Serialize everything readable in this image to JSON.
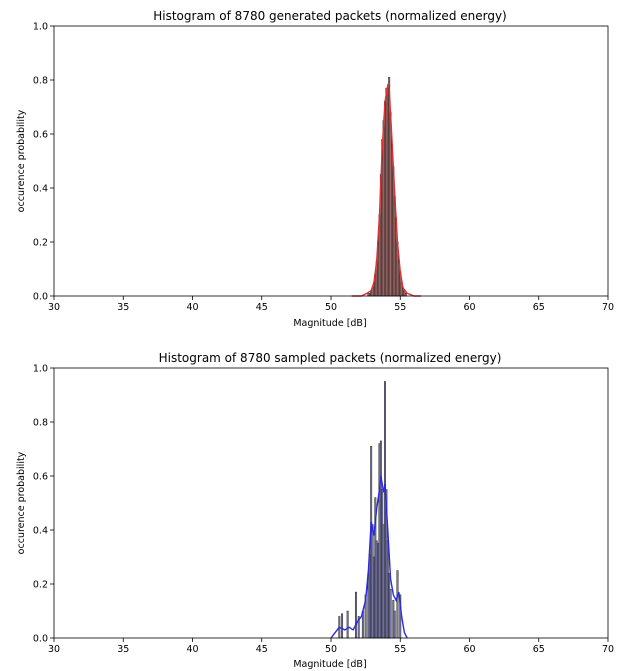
{
  "chart_data": [
    {
      "type": "bar",
      "title": "Histogram of 8780 generated packets (normalized energy)",
      "xlabel": "Magnitude [dB]",
      "ylabel": "occurence probability",
      "xlim": [
        30,
        70
      ],
      "ylim": [
        0,
        1.0
      ],
      "xticks": [
        "30",
        "35",
        "40",
        "45",
        "50",
        "55",
        "60",
        "65",
        "70"
      ],
      "yticks": [
        "0.0",
        "0.2",
        "0.4",
        "0.6",
        "0.8",
        "1.0"
      ],
      "bar_color": "#b07070",
      "curve_color": "#e03030",
      "grid": false,
      "bins": [
        {
          "x": 52.7,
          "v": 0.01
        },
        {
          "x": 52.8,
          "v": 0.01
        },
        {
          "x": 52.9,
          "v": 0.02
        },
        {
          "x": 53.0,
          "v": 0.03
        },
        {
          "x": 53.1,
          "v": 0.05
        },
        {
          "x": 53.2,
          "v": 0.08
        },
        {
          "x": 53.3,
          "v": 0.13
        },
        {
          "x": 53.4,
          "v": 0.2
        },
        {
          "x": 53.5,
          "v": 0.3
        },
        {
          "x": 53.6,
          "v": 0.45
        },
        {
          "x": 53.7,
          "v": 0.58
        },
        {
          "x": 53.8,
          "v": 0.65
        },
        {
          "x": 53.9,
          "v": 0.72
        },
        {
          "x": 54.0,
          "v": 0.77
        },
        {
          "x": 54.1,
          "v": 0.77
        },
        {
          "x": 54.2,
          "v": 0.81
        },
        {
          "x": 54.3,
          "v": 0.68
        },
        {
          "x": 54.4,
          "v": 0.56
        },
        {
          "x": 54.5,
          "v": 0.48
        },
        {
          "x": 54.6,
          "v": 0.37
        },
        {
          "x": 54.7,
          "v": 0.29
        },
        {
          "x": 54.8,
          "v": 0.2
        },
        {
          "x": 54.9,
          "v": 0.13
        },
        {
          "x": 55.0,
          "v": 0.09
        },
        {
          "x": 55.1,
          "v": 0.05
        },
        {
          "x": 55.2,
          "v": 0.03
        },
        {
          "x": 55.3,
          "v": 0.02
        },
        {
          "x": 55.4,
          "v": 0.01
        }
      ],
      "curve": [
        {
          "x": 51.5,
          "y": 0.0
        },
        {
          "x": 52.2,
          "y": 0.0
        },
        {
          "x": 52.6,
          "y": 0.01
        },
        {
          "x": 52.9,
          "y": 0.02
        },
        {
          "x": 53.1,
          "y": 0.05
        },
        {
          "x": 53.3,
          "y": 0.13
        },
        {
          "x": 53.5,
          "y": 0.3
        },
        {
          "x": 53.7,
          "y": 0.55
        },
        {
          "x": 53.9,
          "y": 0.72
        },
        {
          "x": 54.1,
          "y": 0.78
        },
        {
          "x": 54.2,
          "y": 0.77
        },
        {
          "x": 54.4,
          "y": 0.58
        },
        {
          "x": 54.6,
          "y": 0.38
        },
        {
          "x": 54.8,
          "y": 0.2
        },
        {
          "x": 55.0,
          "y": 0.09
        },
        {
          "x": 55.2,
          "y": 0.03
        },
        {
          "x": 55.5,
          "y": 0.01
        },
        {
          "x": 56.0,
          "y": 0.0
        },
        {
          "x": 56.5,
          "y": 0.0
        }
      ]
    },
    {
      "type": "bar",
      "title": "Histogram of 8780 sampled packets (normalized energy)",
      "xlabel": "Magnitude [dB]",
      "ylabel": "occurence probability",
      "xlim": [
        30,
        70
      ],
      "ylim": [
        0,
        1.0
      ],
      "xticks": [
        "30",
        "35",
        "40",
        "45",
        "50",
        "55",
        "60",
        "65",
        "70"
      ],
      "yticks": [
        "0.0",
        "0.2",
        "0.4",
        "0.6",
        "0.8",
        "1.0"
      ],
      "bar_color": "#8080b8",
      "curve_color": "#2a2ae0",
      "grid": false,
      "bins": [
        {
          "x": 50.6,
          "v": 0.08
        },
        {
          "x": 50.8,
          "v": 0.09
        },
        {
          "x": 51.2,
          "v": 0.1
        },
        {
          "x": 51.8,
          "v": 0.17
        },
        {
          "x": 52.0,
          "v": 0.08
        },
        {
          "x": 52.3,
          "v": 0.1
        },
        {
          "x": 52.5,
          "v": 0.16
        },
        {
          "x": 52.7,
          "v": 0.24
        },
        {
          "x": 52.8,
          "v": 0.31
        },
        {
          "x": 52.9,
          "v": 0.71
        },
        {
          "x": 53.0,
          "v": 0.42
        },
        {
          "x": 53.1,
          "v": 0.3
        },
        {
          "x": 53.2,
          "v": 0.52
        },
        {
          "x": 53.3,
          "v": 0.36
        },
        {
          "x": 53.4,
          "v": 0.35
        },
        {
          "x": 53.5,
          "v": 0.72
        },
        {
          "x": 53.6,
          "v": 0.73
        },
        {
          "x": 53.7,
          "v": 0.55
        },
        {
          "x": 53.8,
          "v": 0.42
        },
        {
          "x": 53.9,
          "v": 0.95
        },
        {
          "x": 54.0,
          "v": 0.55
        },
        {
          "x": 54.1,
          "v": 0.36
        },
        {
          "x": 54.2,
          "v": 0.24
        },
        {
          "x": 54.3,
          "v": 0.18
        },
        {
          "x": 54.5,
          "v": 0.14
        },
        {
          "x": 54.6,
          "v": 0.1
        },
        {
          "x": 54.8,
          "v": 0.25
        },
        {
          "x": 55.0,
          "v": 0.16
        }
      ],
      "curve": [
        {
          "x": 50.0,
          "y": 0.0
        },
        {
          "x": 50.3,
          "y": 0.02
        },
        {
          "x": 50.6,
          "y": 0.04
        },
        {
          "x": 51.0,
          "y": 0.03
        },
        {
          "x": 51.3,
          "y": 0.04
        },
        {
          "x": 51.6,
          "y": 0.03
        },
        {
          "x": 51.9,
          "y": 0.06
        },
        {
          "x": 52.2,
          "y": 0.08
        },
        {
          "x": 52.5,
          "y": 0.14
        },
        {
          "x": 52.7,
          "y": 0.25
        },
        {
          "x": 52.9,
          "y": 0.43
        },
        {
          "x": 53.1,
          "y": 0.38
        },
        {
          "x": 53.3,
          "y": 0.48
        },
        {
          "x": 53.5,
          "y": 0.55
        },
        {
          "x": 53.6,
          "y": 0.6
        },
        {
          "x": 53.8,
          "y": 0.54
        },
        {
          "x": 53.9,
          "y": 0.57
        },
        {
          "x": 54.1,
          "y": 0.4
        },
        {
          "x": 54.3,
          "y": 0.22
        },
        {
          "x": 54.5,
          "y": 0.16
        },
        {
          "x": 54.7,
          "y": 0.14
        },
        {
          "x": 54.9,
          "y": 0.17
        },
        {
          "x": 55.1,
          "y": 0.08
        },
        {
          "x": 55.3,
          "y": 0.02
        },
        {
          "x": 55.5,
          "y": 0.0
        }
      ]
    }
  ]
}
